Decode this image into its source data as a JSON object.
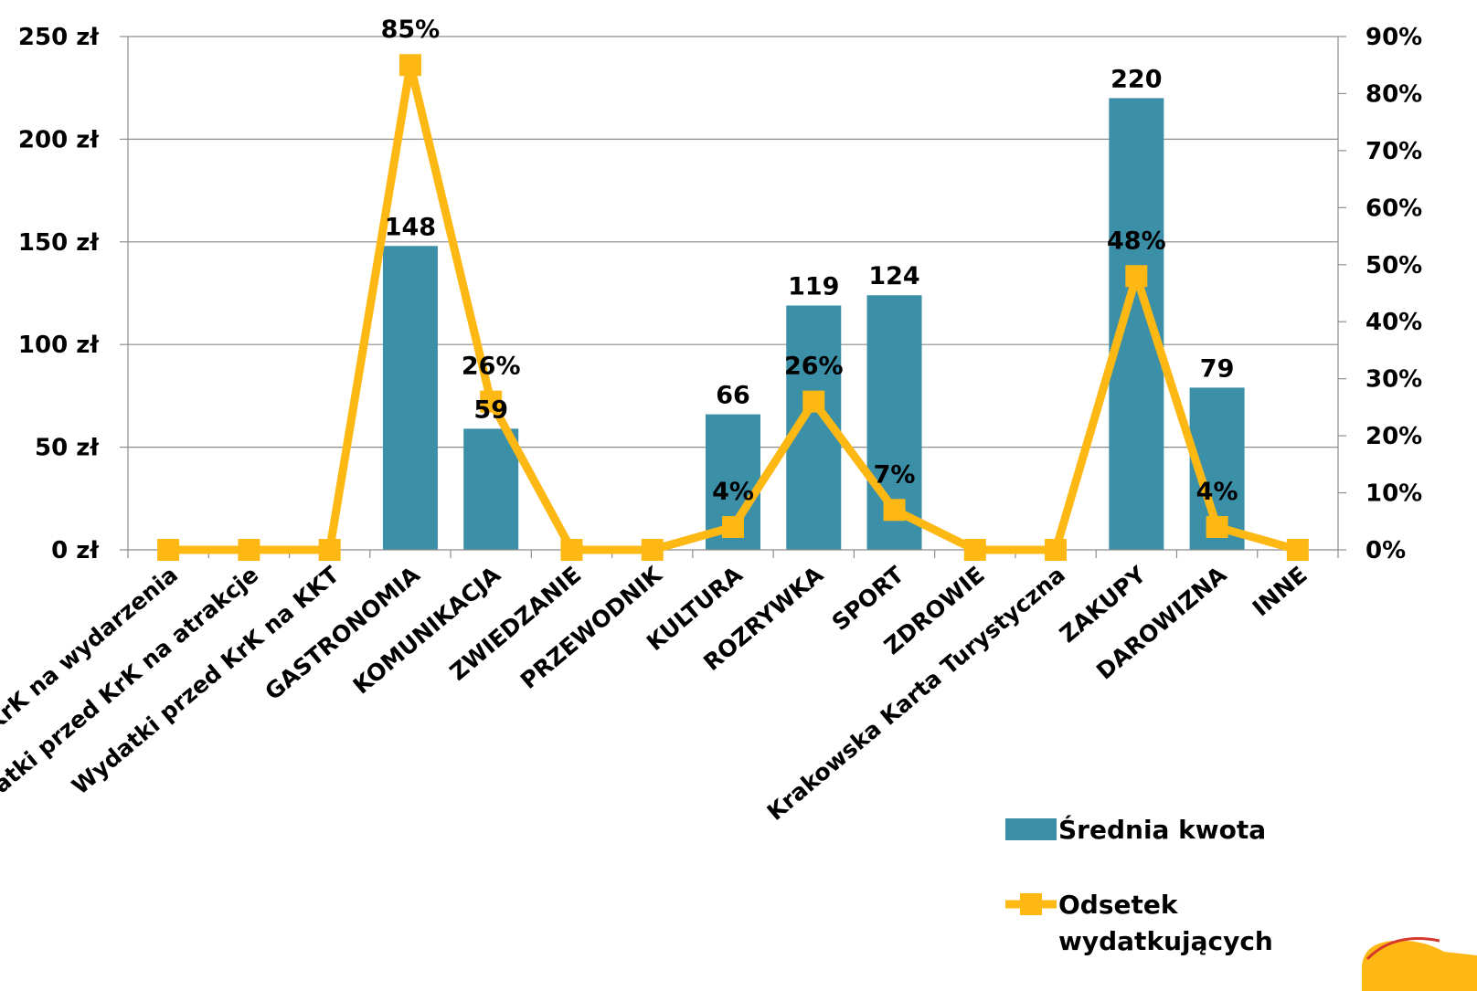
{
  "chart_data": {
    "type": "bar",
    "categories": [
      "Wydatki przed KrK na wydarzenia",
      "Wydatki przed KrK na atrakcje",
      "Wydatki przed KrK na KKT",
      "GASTRONOMIA",
      "KOMUNIKACJA",
      "ZWIEDZANIE",
      "PRZEWODNIK",
      "KULTURA",
      "ROZRYWKA",
      "SPORT",
      "ZDROWIE",
      "Krakowska Karta Turystyczna",
      "ZAKUPY",
      "DAROWIZNA",
      "INNE"
    ],
    "series": [
      {
        "name": "Średnia kwota",
        "type": "bar",
        "axis": "left",
        "color": "#3b8fa7",
        "values": [
          0,
          0,
          0,
          148,
          59,
          0,
          0,
          66,
          119,
          124,
          0,
          0,
          220,
          79,
          0
        ],
        "labels": [
          "",
          "",
          "",
          "148",
          "59",
          "",
          "",
          "66",
          "119",
          "124",
          "",
          "",
          "220",
          "79",
          ""
        ]
      },
      {
        "name": "Odsetek wydatkujących",
        "type": "line",
        "axis": "right",
        "color": "#fdb813",
        "values": [
          0,
          0,
          0,
          85,
          26,
          0,
          0,
          4,
          26,
          7,
          0,
          0,
          48,
          4,
          0
        ],
        "labels": [
          "",
          "",
          "",
          "85%",
          "26%",
          "",
          "",
          "4%",
          "26%",
          "7%",
          "",
          "",
          "48%",
          "4%",
          ""
        ]
      }
    ],
    "y_left": {
      "range": [
        0,
        250
      ],
      "ticks": [
        0,
        50,
        100,
        150,
        200,
        250
      ],
      "tick_labels": [
        "0 zł",
        "50 zł",
        "100 zł",
        "150 zł",
        "200 zł",
        "250 zł"
      ]
    },
    "y_right": {
      "range": [
        0,
        90
      ],
      "ticks": [
        0,
        10,
        20,
        30,
        40,
        50,
        60,
        70,
        80,
        90
      ],
      "tick_labels": [
        "0%",
        "10%",
        "20%",
        "30%",
        "40%",
        "50%",
        "60%",
        "70%",
        "80%",
        "90%"
      ]
    },
    "grid": true,
    "legend": {
      "position": "bottom-right",
      "entries": [
        "Średnia kwota",
        "Odsetek wydatkujących"
      ]
    }
  }
}
